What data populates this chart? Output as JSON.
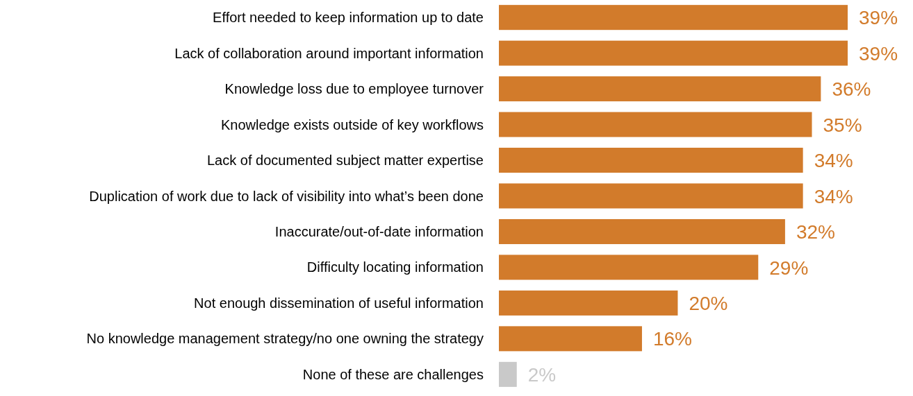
{
  "chart_data": {
    "type": "bar",
    "orientation": "horizontal",
    "categories": [
      "Effort needed to keep information up to date",
      "Lack of collaboration around important information",
      "Knowledge loss due to employee turnover",
      "Knowledge exists outside of key workflows",
      "Lack of documented subject matter expertise",
      "Duplication of work due to lack of visibility into what’s been done",
      "Inaccurate/out-of-date information",
      "Difficulty locating information",
      "Not enough dissemination of useful information",
      "No knowledge management strategy/no one owning the strategy",
      "None of these are challenges"
    ],
    "values": [
      39,
      39,
      36,
      35,
      34,
      34,
      32,
      29,
      20,
      16,
      2
    ],
    "value_labels": [
      "39%",
      "39%",
      "36%",
      "35%",
      "34%",
      "34%",
      "32%",
      "29%",
      "20%",
      "16%",
      "2%"
    ],
    "colors": [
      "#d27b2b",
      "#d27b2b",
      "#d27b2b",
      "#d27b2b",
      "#d27b2b",
      "#d27b2b",
      "#d27b2b",
      "#d27b2b",
      "#d27b2b",
      "#d27b2b",
      "#c9c9c9"
    ]
  }
}
